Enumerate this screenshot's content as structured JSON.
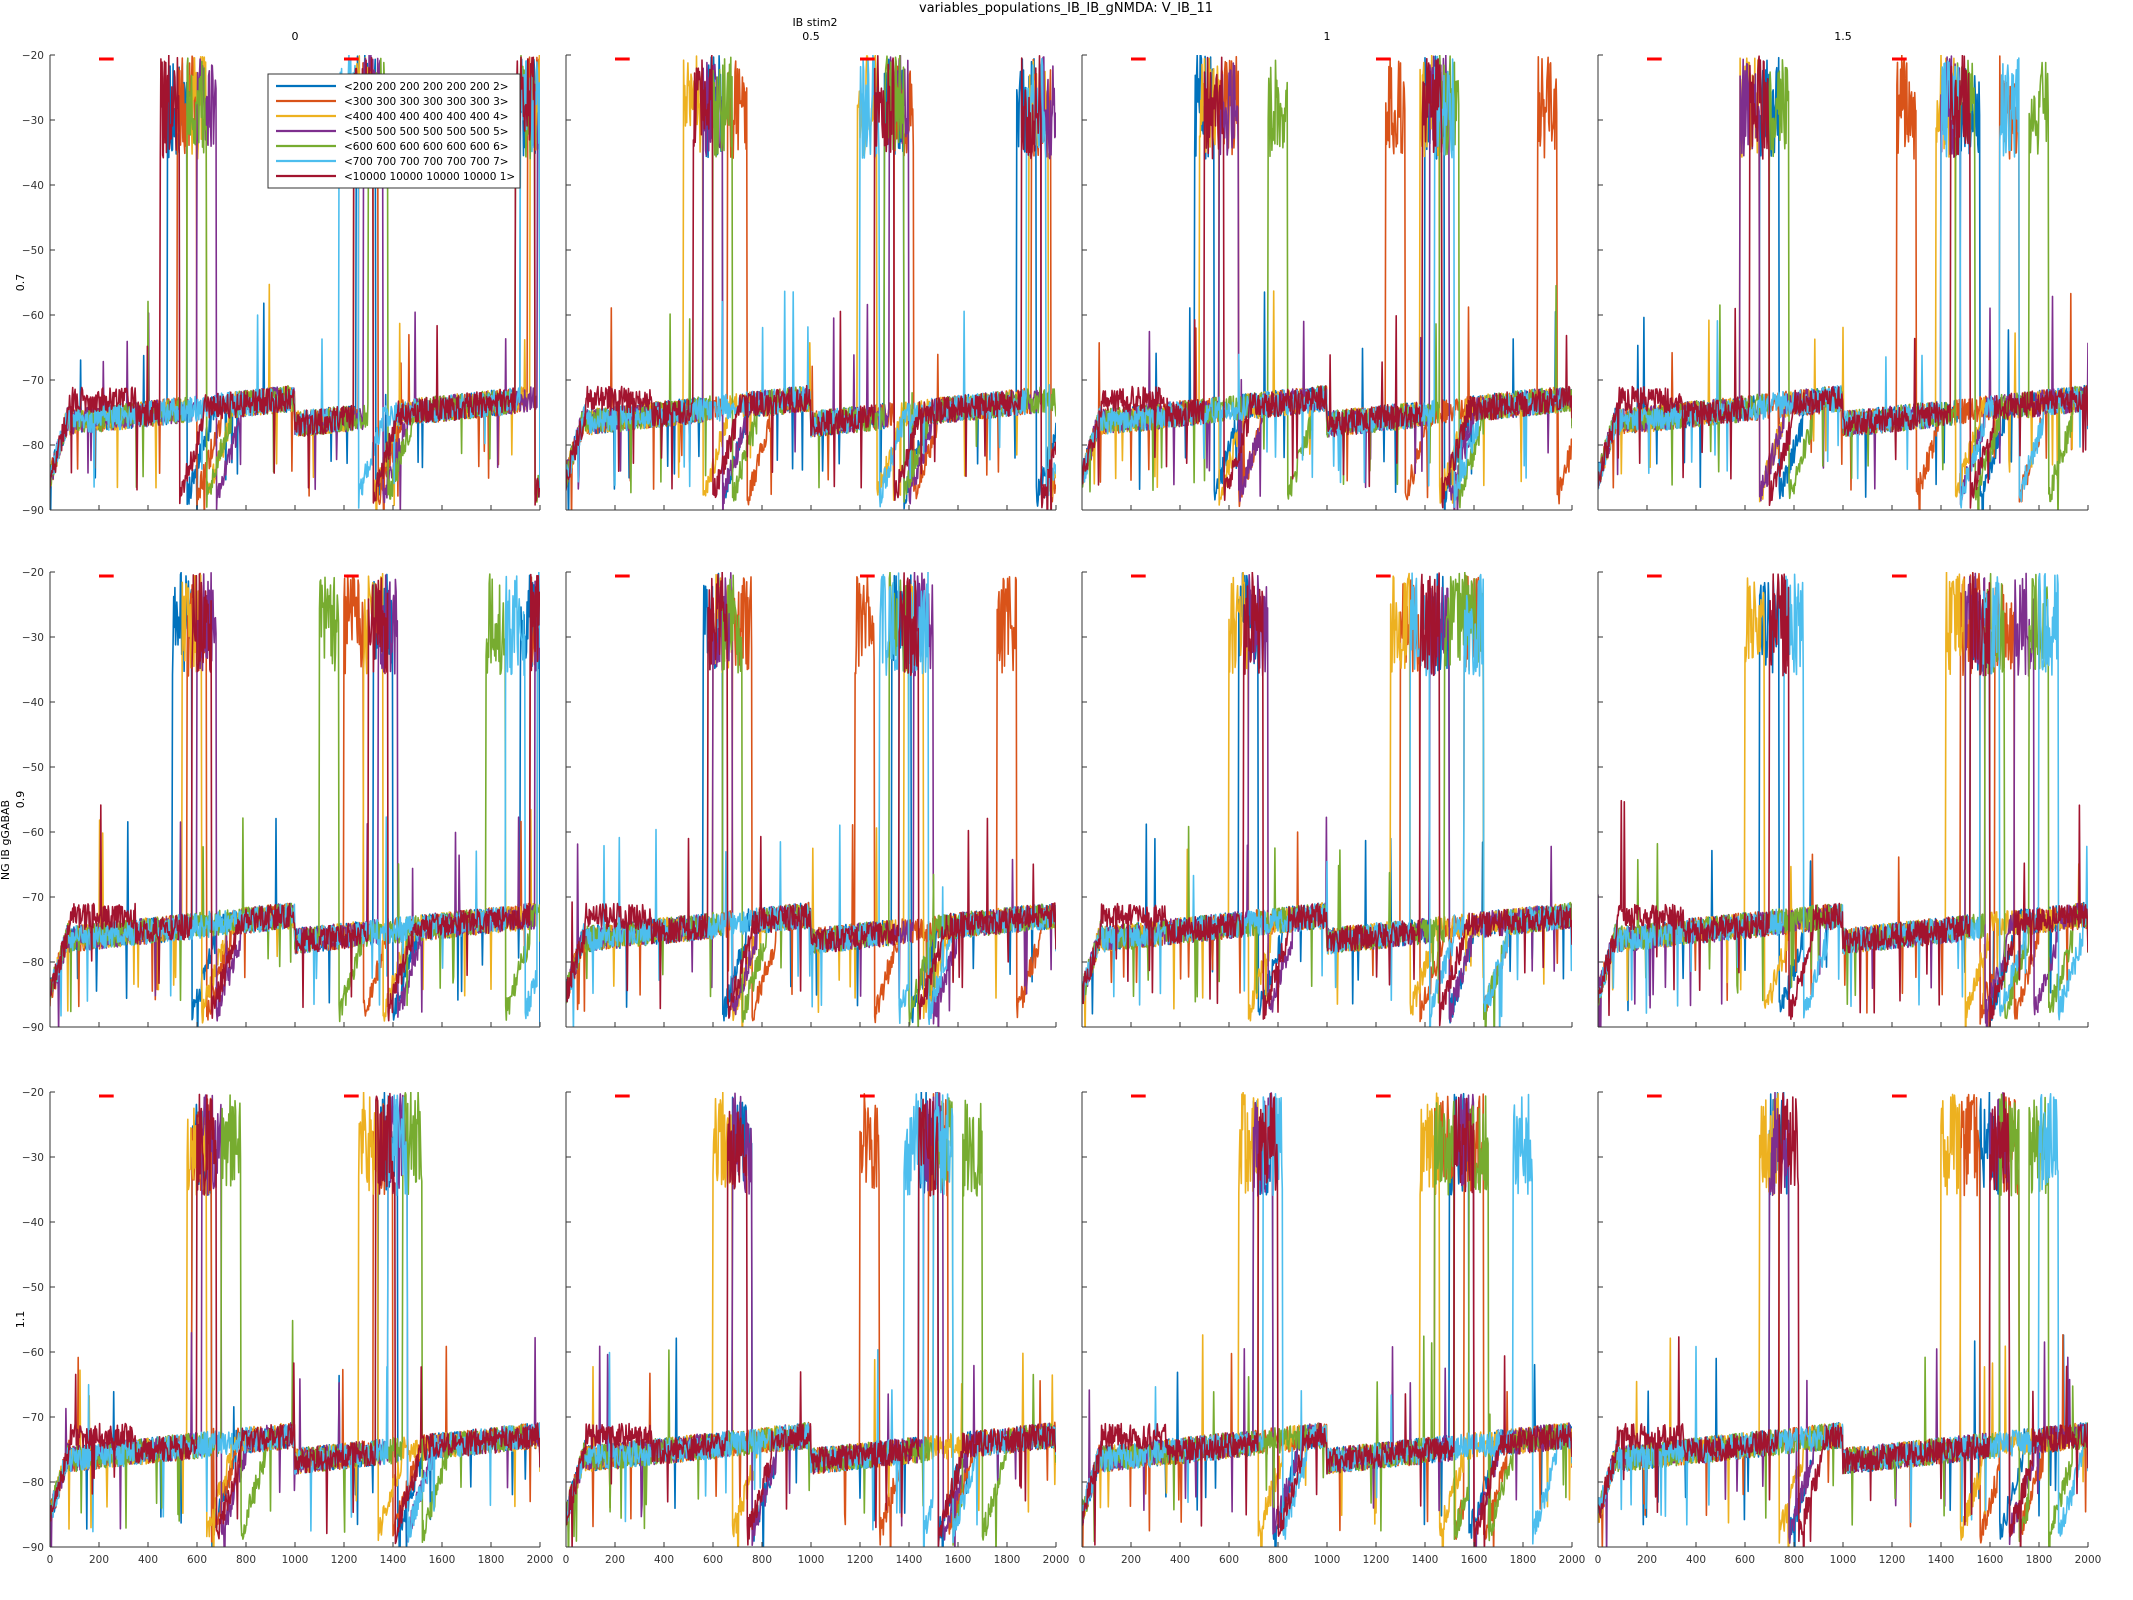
{
  "figure": {
    "title": "variables_populations_IB_IB_gNMDA: V_IB_11",
    "col_var_label": "IB stim2",
    "row_var_label": "NG IB gGABAB"
  },
  "colors": {
    "stim_bar": "#ff0000",
    "axis": "#333333",
    "background": "#ffffff"
  },
  "chart_data": {
    "type": "line",
    "layout": "grid",
    "grid": false,
    "legend_placement": "top-right of top-left panel",
    "columns": [
      "0",
      "0.5",
      "1",
      "1.5"
    ],
    "rows": [
      "0.7",
      "0.9",
      "1.1"
    ],
    "xlim": [
      0,
      2000
    ],
    "ylim": [
      -90,
      -20
    ],
    "xticks": [
      0,
      200,
      400,
      600,
      800,
      1000,
      1200,
      1400,
      1600,
      1800,
      2000
    ],
    "yticks": [
      -20,
      -30,
      -40,
      -50,
      -60,
      -70,
      -80,
      -90
    ],
    "stimulus_marks": [
      [
        200,
        260
      ],
      [
        1200,
        1260
      ]
    ],
    "series": [
      {
        "name": "<200 200 200 200 200 200 2>",
        "color": "#0072bd"
      },
      {
        "name": "<300 300 300 300 300 300 3>",
        "color": "#d95319"
      },
      {
        "name": "<400 400 400 400 400 400 4>",
        "color": "#edb120"
      },
      {
        "name": "<500 500 500 500 500 500 5>",
        "color": "#7e2f8e"
      },
      {
        "name": "<600 600 600 600 600 600 6>",
        "color": "#77ac30"
      },
      {
        "name": "<700 700 700 700 700 700 7>",
        "color": "#4dbeee"
      },
      {
        "name": "<10000 10000 10000 10000 1>",
        "color": "#a2142f"
      }
    ],
    "burst_onsets": [
      [
        [
          [
            480,
            1250,
            1920
          ],
          [
            520,
            1260,
            1950
          ],
          [
            560,
            1240,
            1960
          ],
          [
            600,
            1280,
            1990
          ],
          [
            560,
            1300,
            1900
          ],
          [
            1180,
            1920
          ],
          [
            450,
            1240,
            1900
          ]
        ],
        [
          [
            560,
            1300,
            1840
          ],
          [
            660,
            1340,
            1900
          ],
          [
            480,
            1190,
            1890
          ],
          [
            560,
            1320,
            1940
          ],
          [
            600,
            1300
          ],
          [
            1200,
            1880
          ],
          [
            520,
            1260,
            1860
          ]
        ],
        [
          [
            460,
            1400
          ],
          [
            560,
            1240,
            1860
          ],
          [
            480,
            1380
          ],
          [
            560,
            1420
          ],
          [
            760,
            1460
          ],
          [
            1440
          ],
          [
            500,
            1390
          ]
        ],
        [
          [
            660,
            1480
          ],
          [
            1220,
            1640
          ],
          [
            580,
            1380
          ],
          [
            580,
            1400
          ],
          [
            700,
            1460,
            1760
          ],
          [
            1400,
            1640
          ],
          [
            620,
            1440
          ]
        ]
      ],
      [
        [
          [
            500,
            1320,
            1920
          ],
          [
            560,
            1200,
            1960
          ],
          [
            540,
            1280,
            1990
          ],
          [
            600,
            1340,
            1980
          ],
          [
            1100,
            1780
          ],
          [
            1860,
            1990
          ],
          [
            580,
            1300,
            1960
          ]
        ],
        [
          [
            560,
            1330
          ],
          [
            680,
            1180,
            1760
          ],
          [
            600,
            1380
          ],
          [
            600,
            1420
          ],
          [
            640,
            1320
          ],
          [
            1280,
            1400
          ],
          [
            580,
            1360
          ]
        ],
        [
          [
            640,
            1420
          ],
          [
            1300,
            1560
          ],
          [
            600,
            1260
          ],
          [
            680,
            1420
          ],
          [
            1480,
            1560
          ],
          [
            1340,
            1560
          ],
          [
            660,
            1380
          ]
        ],
        [
          [
            660,
            1520
          ],
          [
            1480,
            1620
          ],
          [
            600,
            1420
          ],
          [
            1500,
            1700
          ],
          [
            1580,
            1760
          ],
          [
            760,
            1560,
            1800
          ],
          [
            700,
            1520
          ]
        ]
      ],
      [
        [
          [
            580,
            1340
          ],
          [
            580,
            1320
          ],
          [
            560,
            1260
          ],
          [
            620,
            1380
          ],
          [
            700,
            1440
          ],
          [
            1380
          ],
          [
            600,
            1330
          ]
        ],
        [
          [
            680,
            1440
          ],
          [
            1200,
            1480
          ],
          [
            600
          ],
          [
            680,
            1460
          ],
          [
            1500,
            1620
          ],
          [
            1380,
            1500
          ],
          [
            660,
            1440
          ]
        ],
        [
          [
            700,
            1500
          ],
          [
            1440,
            1560
          ],
          [
            640,
            1380
          ],
          [
            700,
            1520
          ],
          [
            1440,
            1580
          ],
          [
            740,
            1760
          ],
          [
            720,
            1520
          ]
        ],
        [
          [
            700,
            1560
          ],
          [
            1480,
            1640
          ],
          [
            660,
            1400
          ],
          [
            700,
            1600
          ],
          [
            1640,
            1760
          ],
          [
            1800
          ],
          [
            740,
            1600
          ]
        ]
      ]
    ]
  }
}
